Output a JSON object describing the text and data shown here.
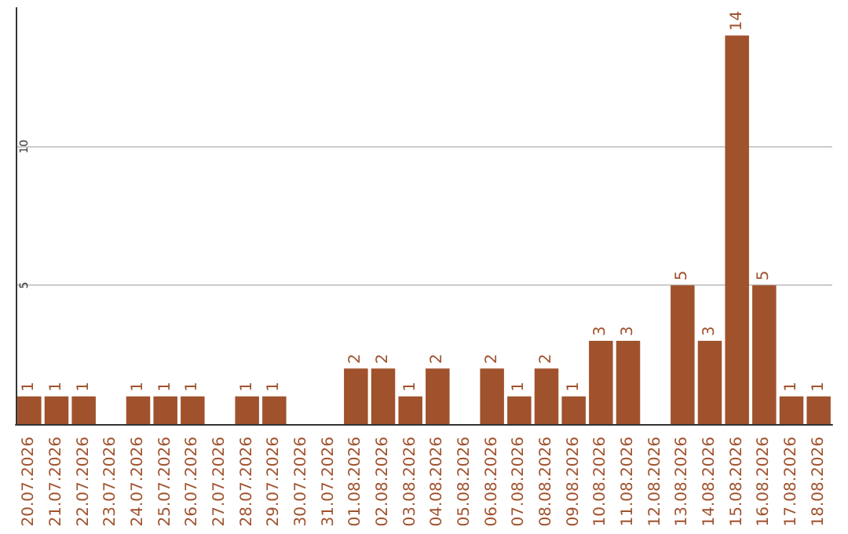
{
  "chart_data": {
    "type": "bar",
    "categories": [
      "20.07.2026",
      "21.07.2026",
      "22.07.2026",
      "23.07.2026",
      "24.07.2026",
      "25.07.2026",
      "26.07.2026",
      "27.07.2026",
      "28.07.2026",
      "29.07.2026",
      "30.07.2026",
      "31.07.2026",
      "01.08.2026",
      "02.08.2026",
      "03.08.2026",
      "04.08.2026",
      "05.08.2026",
      "06.08.2026",
      "07.08.2026",
      "08.08.2026",
      "09.08.2026",
      "10.08.2026",
      "11.08.2026",
      "12.08.2026",
      "13.08.2026",
      "14.08.2026",
      "15.08.2026",
      "16.08.2026",
      "17.08.2026",
      "18.08.2026"
    ],
    "values": [
      1,
      1,
      1,
      null,
      1,
      1,
      1,
      null,
      1,
      1,
      null,
      null,
      2,
      2,
      1,
      2,
      null,
      2,
      1,
      2,
      1,
      3,
      3,
      null,
      5,
      3,
      14,
      5,
      1,
      1
    ],
    "color": "#a0522d",
    "ylim": [
      0,
      15
    ],
    "yticks": [
      5,
      10
    ],
    "grid": "y",
    "data_labels": true
  }
}
